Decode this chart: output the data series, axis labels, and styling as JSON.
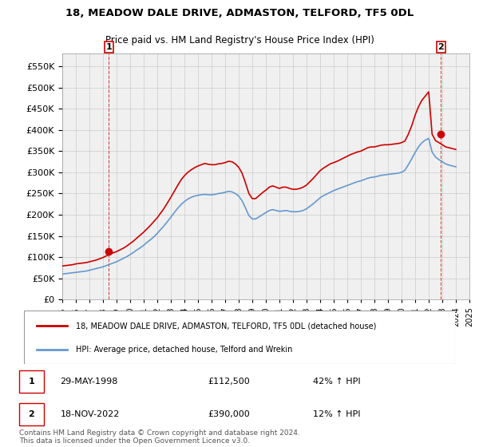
{
  "title": "18, MEADOW DALE DRIVE, ADMASTON, TELFORD, TF5 0DL",
  "subtitle": "Price paid vs. HM Land Registry's House Price Index (HPI)",
  "legend_label1": "18, MEADOW DALE DRIVE, ADMASTON, TELFORD, TF5 0DL (detached house)",
  "legend_label2": "HPI: Average price, detached house, Telford and Wrekin",
  "point1_date": "29-MAY-1998",
  "point1_price": 112500,
  "point1_hpi": "42% ↑ HPI",
  "point2_date": "18-NOV-2022",
  "point2_price": 390000,
  "point2_hpi": "12% ↑ HPI",
  "footer": "Contains HM Land Registry data © Crown copyright and database right 2024.\nThis data is licensed under the Open Government Licence v3.0.",
  "red_color": "#cc0000",
  "blue_color": "#6699cc",
  "background_color": "#ffffff",
  "grid_color": "#cccccc",
  "ylim": [
    0,
    580000
  ],
  "yticks": [
    0,
    50000,
    100000,
    150000,
    200000,
    250000,
    300000,
    350000,
    400000,
    450000,
    500000,
    550000
  ],
  "red_line_data": {
    "years": [
      1995.0,
      1995.25,
      1995.5,
      1995.75,
      1996.0,
      1996.25,
      1996.5,
      1996.75,
      1997.0,
      1997.25,
      1997.5,
      1997.75,
      1998.0,
      1998.25,
      1998.5,
      1998.75,
      1999.0,
      1999.25,
      1999.5,
      1999.75,
      2000.0,
      2000.25,
      2000.5,
      2000.75,
      2001.0,
      2001.25,
      2001.5,
      2001.75,
      2002.0,
      2002.25,
      2002.5,
      2002.75,
      2003.0,
      2003.25,
      2003.5,
      2003.75,
      2004.0,
      2004.25,
      2004.5,
      2004.75,
      2005.0,
      2005.25,
      2005.5,
      2005.75,
      2006.0,
      2006.25,
      2006.5,
      2006.75,
      2007.0,
      2007.25,
      2007.5,
      2007.75,
      2008.0,
      2008.25,
      2008.5,
      2008.75,
      2009.0,
      2009.25,
      2009.5,
      2009.75,
      2010.0,
      2010.25,
      2010.5,
      2010.75,
      2011.0,
      2011.25,
      2011.5,
      2011.75,
      2012.0,
      2012.25,
      2012.5,
      2012.75,
      2013.0,
      2013.25,
      2013.5,
      2013.75,
      2014.0,
      2014.25,
      2014.5,
      2014.75,
      2015.0,
      2015.25,
      2015.5,
      2015.75,
      2016.0,
      2016.25,
      2016.5,
      2016.75,
      2017.0,
      2017.25,
      2017.5,
      2017.75,
      2018.0,
      2018.25,
      2018.5,
      2018.75,
      2019.0,
      2019.25,
      2019.5,
      2019.75,
      2020.0,
      2020.25,
      2020.5,
      2020.75,
      2021.0,
      2021.25,
      2021.5,
      2021.75,
      2022.0,
      2022.25,
      2022.5,
      2022.75,
      2023.0,
      2023.25,
      2023.5,
      2023.75,
      2024.0
    ],
    "values": [
      79000,
      80000,
      81000,
      82000,
      84000,
      85000,
      86000,
      87000,
      89000,
      91000,
      93000,
      96000,
      99000,
      103000,
      107000,
      110000,
      113000,
      117000,
      121000,
      126000,
      132000,
      138000,
      145000,
      152000,
      159000,
      167000,
      175000,
      184000,
      193000,
      204000,
      215000,
      228000,
      241000,
      255000,
      269000,
      282000,
      292000,
      300000,
      306000,
      311000,
      315000,
      318000,
      321000,
      319000,
      318000,
      318000,
      320000,
      321000,
      323000,
      326000,
      325000,
      320000,
      312000,
      298000,
      275000,
      250000,
      238000,
      238000,
      245000,
      252000,
      258000,
      265000,
      268000,
      265000,
      262000,
      265000,
      265000,
      262000,
      260000,
      260000,
      262000,
      265000,
      270000,
      278000,
      286000,
      295000,
      304000,
      310000,
      315000,
      320000,
      323000,
      326000,
      330000,
      334000,
      338000,
      342000,
      345000,
      348000,
      350000,
      354000,
      358000,
      360000,
      360000,
      362000,
      364000,
      365000,
      365000,
      366000,
      367000,
      368000,
      370000,
      374000,
      390000,
      410000,
      435000,
      455000,
      470000,
      480000,
      490000,
      390000,
      375000,
      370000,
      365000,
      360000,
      358000,
      356000,
      354000
    ]
  },
  "blue_line_data": {
    "years": [
      1995.0,
      1995.25,
      1995.5,
      1995.75,
      1996.0,
      1996.25,
      1996.5,
      1996.75,
      1997.0,
      1997.25,
      1997.5,
      1997.75,
      1998.0,
      1998.25,
      1998.5,
      1998.75,
      1999.0,
      1999.25,
      1999.5,
      1999.75,
      2000.0,
      2000.25,
      2000.5,
      2000.75,
      2001.0,
      2001.25,
      2001.5,
      2001.75,
      2002.0,
      2002.25,
      2002.5,
      2002.75,
      2003.0,
      2003.25,
      2003.5,
      2003.75,
      2004.0,
      2004.25,
      2004.5,
      2004.75,
      2005.0,
      2005.25,
      2005.5,
      2005.75,
      2006.0,
      2006.25,
      2006.5,
      2006.75,
      2007.0,
      2007.25,
      2007.5,
      2007.75,
      2008.0,
      2008.25,
      2008.5,
      2008.75,
      2009.0,
      2009.25,
      2009.5,
      2009.75,
      2010.0,
      2010.25,
      2010.5,
      2010.75,
      2011.0,
      2011.25,
      2011.5,
      2011.75,
      2012.0,
      2012.25,
      2012.5,
      2012.75,
      2013.0,
      2013.25,
      2013.5,
      2013.75,
      2014.0,
      2014.25,
      2014.5,
      2014.75,
      2015.0,
      2015.25,
      2015.5,
      2015.75,
      2016.0,
      2016.25,
      2016.5,
      2016.75,
      2017.0,
      2017.25,
      2017.5,
      2017.75,
      2018.0,
      2018.25,
      2018.5,
      2018.75,
      2019.0,
      2019.25,
      2019.5,
      2019.75,
      2020.0,
      2020.25,
      2020.5,
      2020.75,
      2021.0,
      2021.25,
      2021.5,
      2021.75,
      2022.0,
      2022.25,
      2022.5,
      2022.75,
      2023.0,
      2023.25,
      2023.5,
      2023.75,
      2024.0
    ],
    "values": [
      60000,
      61000,
      62000,
      63000,
      64000,
      65000,
      66000,
      67000,
      69000,
      71000,
      73000,
      75000,
      77000,
      80000,
      83000,
      86000,
      89000,
      93000,
      97000,
      101000,
      106000,
      111000,
      117000,
      122000,
      128000,
      135000,
      141000,
      148000,
      156000,
      165000,
      174000,
      184000,
      194000,
      205000,
      215000,
      224000,
      231000,
      237000,
      241000,
      244000,
      246000,
      247000,
      248000,
      247000,
      247000,
      248000,
      250000,
      251000,
      253000,
      255000,
      254000,
      250000,
      244000,
      233000,
      216000,
      198000,
      190000,
      190000,
      195000,
      200000,
      205000,
      210000,
      212000,
      210000,
      208000,
      209000,
      210000,
      208000,
      207000,
      207000,
      208000,
      210000,
      214000,
      220000,
      226000,
      233000,
      240000,
      245000,
      249000,
      253000,
      257000,
      260000,
      263000,
      266000,
      269000,
      272000,
      275000,
      278000,
      280000,
      283000,
      286000,
      288000,
      289000,
      291000,
      293000,
      294000,
      295000,
      296000,
      297000,
      298000,
      300000,
      305000,
      318000,
      332000,
      347000,
      360000,
      370000,
      376000,
      380000,
      348000,
      336000,
      330000,
      325000,
      320000,
      317000,
      315000,
      313000
    ]
  }
}
